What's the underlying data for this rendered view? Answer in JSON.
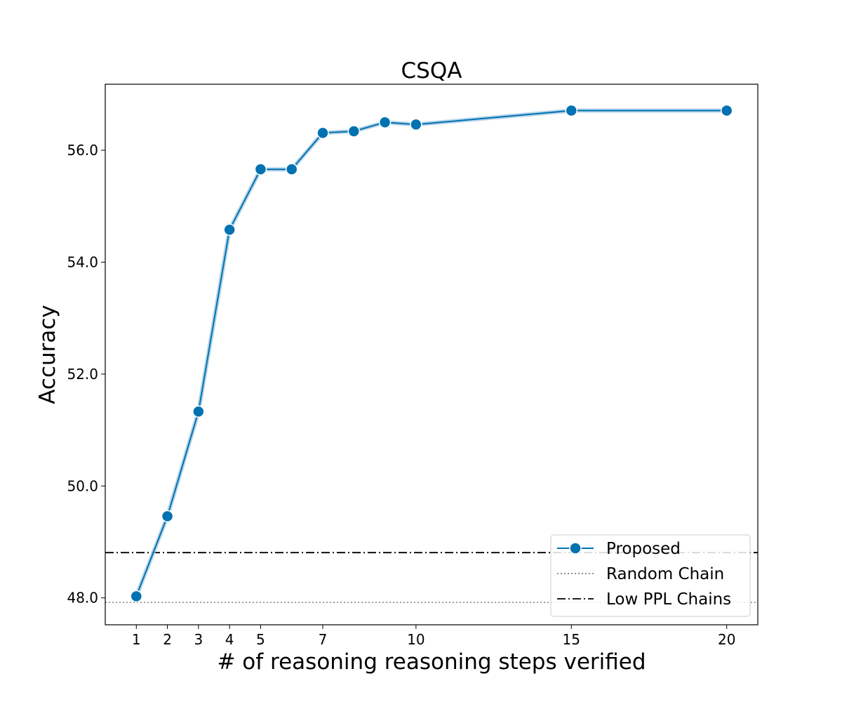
{
  "chart_data": {
    "type": "line",
    "title": "CSQA",
    "xlabel": "# of reasoning reasoning steps verified",
    "ylabel": "Accuracy",
    "xlim": [
      0,
      21
    ],
    "ylim": [
      47.52,
      57.18
    ],
    "x_ticks": [
      1,
      2,
      3,
      4,
      5,
      7,
      10,
      15,
      20
    ],
    "x_tick_labels": [
      "1",
      "2",
      "3",
      "4",
      "5",
      "7",
      "10",
      "15",
      "20"
    ],
    "y_ticks": [
      48.0,
      50.0,
      52.0,
      54.0,
      56.0
    ],
    "y_tick_labels": [
      "48.0",
      "50.0",
      "52.0",
      "54.0",
      "56.0"
    ],
    "grid": false,
    "legend_position": "lower-right",
    "series": [
      {
        "name": "Proposed",
        "style": "solid-line-with-circle-markers",
        "color": "#0072b2",
        "band_color": "#a6cbe3",
        "x": [
          1,
          2,
          3,
          4,
          5,
          6,
          7,
          8,
          9,
          10,
          15,
          20
        ],
        "y": [
          48.03,
          49.46,
          51.33,
          54.58,
          55.66,
          55.66,
          56.31,
          56.34,
          56.5,
          56.46,
          56.71,
          56.71
        ]
      }
    ],
    "reference_lines": [
      {
        "name": "Random Chain",
        "style": "dotted",
        "color": "#808080",
        "y": 47.92
      },
      {
        "name": "Low PPL Chains",
        "style": "dashdot",
        "color": "#000000",
        "y": 48.81
      }
    ]
  }
}
